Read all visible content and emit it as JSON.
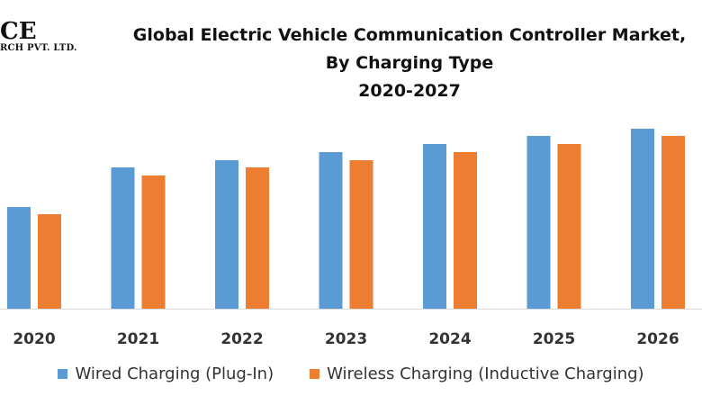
{
  "logo": {
    "line1": "CE",
    "line2": "RCH PVT. LTD."
  },
  "chart_data": {
    "type": "bar",
    "title": [
      "Global Electric Vehicle Communication Controller Market,",
      "By Charging Type",
      "2020-2027"
    ],
    "categories": [
      "2020",
      "2021",
      "2022",
      "2023",
      "2024",
      "2025",
      "2026"
    ],
    "series": [
      {
        "name": "Wired Charging (Plug-In)",
        "color": "#5b9bd5",
        "values": [
          113,
          157,
          165,
          174,
          183,
          192,
          200
        ]
      },
      {
        "name": "Wireless Charging (Inductive Charging)",
        "color": "#ed7d31",
        "values": [
          105,
          148,
          157,
          165,
          174,
          183,
          192
        ]
      }
    ],
    "xlabel": "",
    "ylabel": "",
    "ylim": [
      0,
      220
    ],
    "y_axis_shown": false,
    "grid": false,
    "legend_position": "bottom"
  }
}
